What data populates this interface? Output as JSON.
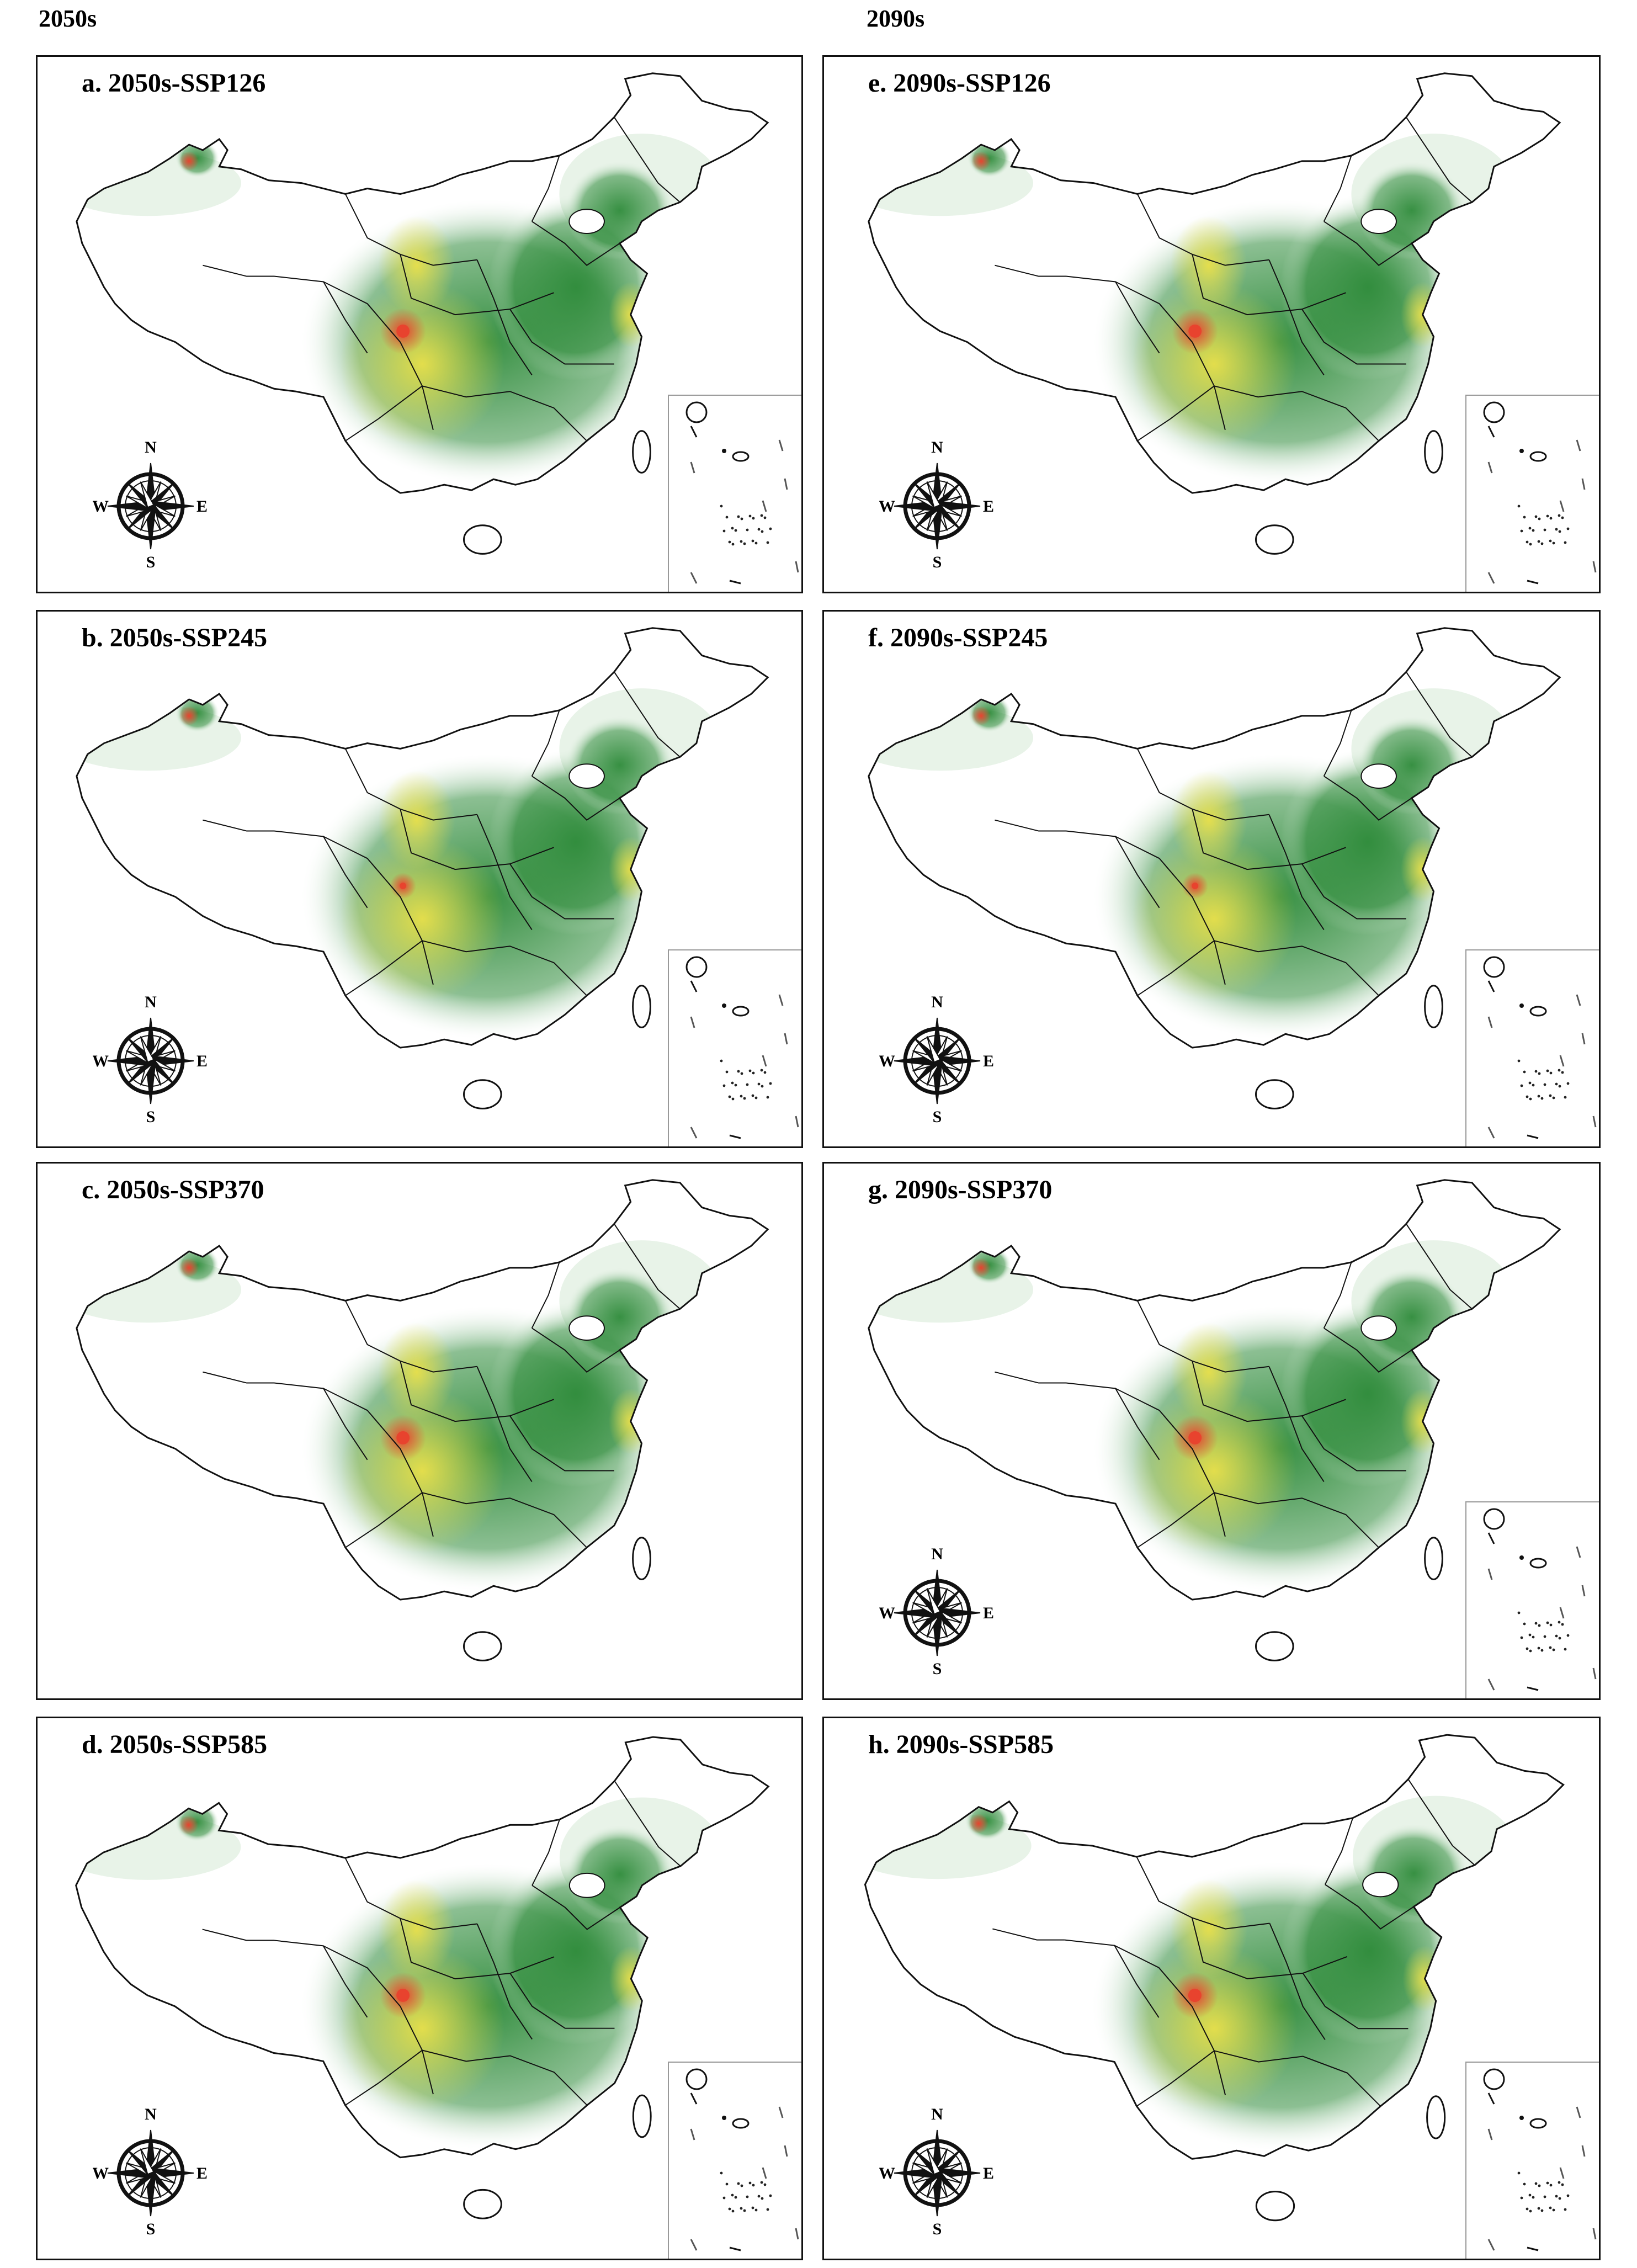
{
  "columns": [
    {
      "header": "2050s"
    },
    {
      "header": "2090s"
    }
  ],
  "panels": [
    {
      "id": "a",
      "title": "a. 2050s-SSP126",
      "hotspot": "high"
    },
    {
      "id": "b",
      "title": "b. 2050s-SSP245",
      "hotspot": "medium"
    },
    {
      "id": "c",
      "title": "c. 2050s-SSP370",
      "hotspot": "high"
    },
    {
      "id": "d",
      "title": "d. 2050s-SSP585",
      "hotspot": "high"
    },
    {
      "id": "e",
      "title": "e. 2090s-SSP126",
      "hotspot": "high"
    },
    {
      "id": "f",
      "title": "f. 2090s-SSP245",
      "hotspot": "medium"
    },
    {
      "id": "g",
      "title": "g. 2090s-SSP370",
      "hotspot": "high"
    },
    {
      "id": "h",
      "title": "h. 2090s-SSP585",
      "hotspot": "high"
    }
  ],
  "compass": {
    "n": "N",
    "s": "S",
    "e": "E",
    "w": "W"
  },
  "colors": {
    "low_suitability": "#e6f2e6",
    "medium_suitability": "#2e8b3a",
    "high_suitability": "#e9e04a",
    "very_high_suitability": "#e8432e",
    "boundary": "#111111"
  }
}
